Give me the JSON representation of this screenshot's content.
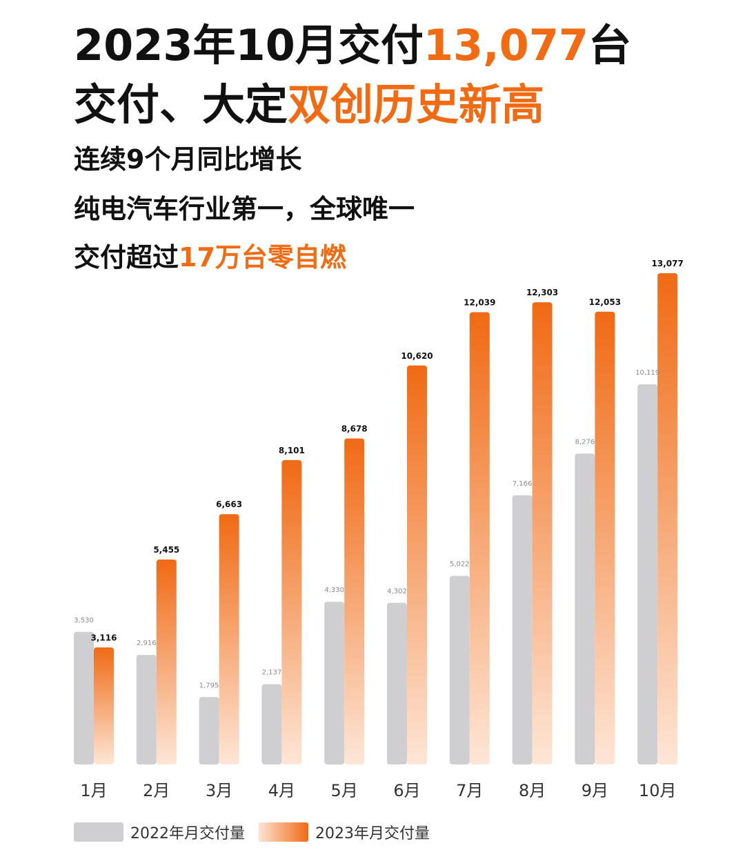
{
  "headline": {
    "line1_prefix": "2023年10月交付",
    "line1_highlight": "13,077",
    "line1_suffix": "台",
    "line2_prefix": "交付、大定",
    "line2_highlight": "双创历史新高"
  },
  "subtitles": {
    "line1": "连续9个月同比增长",
    "line2": "纯电汽车行业第一，全球唯一",
    "line3_prefix": "交付超过",
    "line3_highlight": "17万台零自燃"
  },
  "colors": {
    "accent": "#f26b12",
    "series_2022": "#cfcfd1",
    "series_2023_top": "#f06a14",
    "series_2023_bottom": "#fde6d6"
  },
  "chart_data": {
    "type": "bar",
    "categories": [
      "1月",
      "2月",
      "3月",
      "4月",
      "5月",
      "6月",
      "7月",
      "8月",
      "9月",
      "10月"
    ],
    "series": [
      {
        "name": "2022年月交付量",
        "values": [
          3530,
          2916,
          1795,
          2137,
          4330,
          4302,
          5022,
          7166,
          8276,
          10119
        ],
        "labels": [
          "3,530",
          "2,916",
          "1,795",
          "2,137",
          "4,330",
          "4,302",
          "5,022",
          "7,166",
          "8,276",
          "10,119"
        ]
      },
      {
        "name": "2023年月交付量",
        "values": [
          3116,
          5455,
          6663,
          8101,
          8678,
          10620,
          12039,
          12303,
          12053,
          13077
        ],
        "labels": [
          "3,116",
          "5,455",
          "6,663",
          "8,101",
          "8,678",
          "10,620",
          "12,039",
          "12,303",
          "12,053",
          "13,077"
        ]
      }
    ],
    "ylim": [
      0,
      13077
    ],
    "legend_position": "bottom-left",
    "grid": false
  }
}
